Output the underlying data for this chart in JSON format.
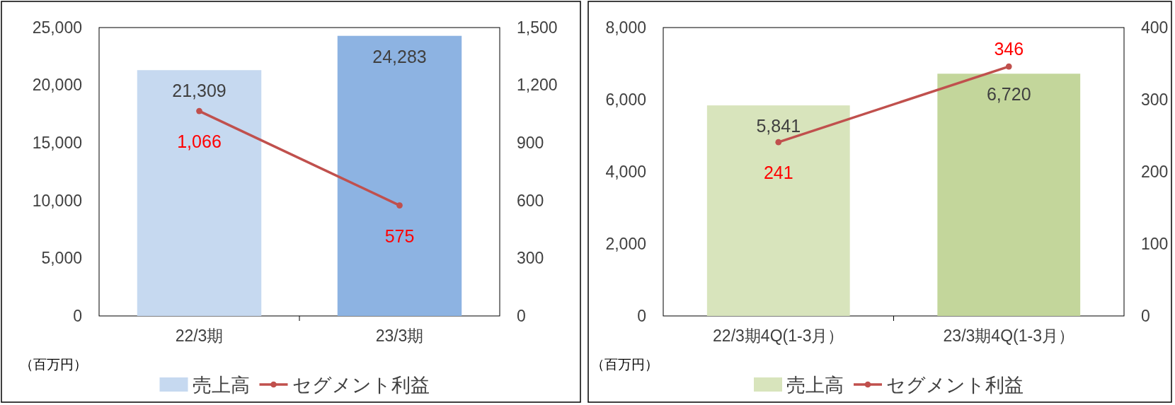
{
  "chart_data": [
    {
      "type": "bar",
      "categories": [
        "22/3期",
        "23/3期"
      ],
      "series": [
        {
          "name": "売上高",
          "colors": [
            "#c6d9f0",
            "#8db3e2"
          ],
          "values": [
            21309,
            24283
          ],
          "value_labels": [
            "21,309",
            "24,283"
          ]
        },
        {
          "name": "セグメント利益",
          "type": "line",
          "axis": "y2",
          "color": "#c0504d",
          "values": [
            1066,
            575
          ],
          "value_labels": [
            "1,066",
            "575"
          ],
          "marker": "circle",
          "line_style": "solid"
        }
      ],
      "ylim": [
        0,
        25000
      ],
      "yticks": [
        0,
        {
          "value": 5000,
          "label": "5,000"
        },
        {
          "value": 10000,
          "label": "10,000"
        },
        {
          "value": 15000,
          "label": "15,000"
        },
        {
          "value": 20000,
          "label": "20,000"
        },
        {
          "value": 25000,
          "label": "25,000"
        }
      ],
      "y2lim": [
        0,
        1500
      ],
      "y2ticks": [
        0,
        300,
        600,
        900,
        {
          "value": 1200,
          "label": "1,200"
        },
        {
          "value": 1500,
          "label": "1,500"
        }
      ],
      "annotations": [
        "（百万円）"
      ],
      "legend": "bottom",
      "grid": false
    },
    {
      "type": "bar",
      "categories": [
        "22/3期4Q(1-3月）",
        "23/3期4Q(1-3月）"
      ],
      "series": [
        {
          "name": "売上高",
          "colors": [
            "#d8e4bc",
            "#c3d69b"
          ],
          "values": [
            5841,
            6720
          ],
          "value_labels": [
            "5,841",
            "6,720"
          ]
        },
        {
          "name": "セグメント利益",
          "type": "line",
          "axis": "y2",
          "color": "#c0504d",
          "values": [
            241,
            346
          ],
          "value_labels": [
            "241",
            "346"
          ],
          "marker": "circle",
          "line_style": "solid"
        }
      ],
      "ylim": [
        0,
        8000
      ],
      "yticks": [
        0,
        {
          "value": 2000,
          "label": "2,000"
        },
        {
          "value": 4000,
          "label": "4,000"
        },
        {
          "value": 6000,
          "label": "6,000"
        },
        {
          "value": 8000,
          "label": "8,000"
        }
      ],
      "y2lim": [
        0,
        400
      ],
      "y2ticks": [
        0,
        100,
        200,
        300,
        400
      ],
      "annotations": [
        "（百万円）"
      ],
      "legend": "bottom",
      "grid": false
    }
  ]
}
